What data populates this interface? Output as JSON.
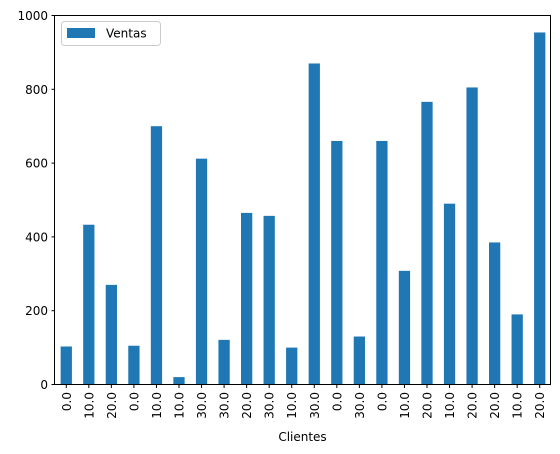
{
  "chart_data": {
    "type": "bar",
    "categories": [
      "0.0",
      "10.0",
      "20.0",
      "0.0",
      "10.0",
      "10.0",
      "30.0",
      "30.0",
      "20.0",
      "30.0",
      "10.0",
      "30.0",
      "0.0",
      "30.0",
      "0.0",
      "10.0",
      "20.0",
      "10.0",
      "20.0",
      "20.0",
      "10.0",
      "20.0"
    ],
    "series": [
      {
        "name": "Ventas",
        "color": "#1f77b4",
        "values": [
          103,
          433,
          270,
          105,
          700,
          20,
          612,
          121,
          465,
          457,
          100,
          870,
          660,
          130,
          660,
          308,
          766,
          490,
          805,
          385,
          190,
          954
        ]
      }
    ],
    "xlabel": "Clientes",
    "ylabel": "",
    "ylim": [
      0,
      1000
    ],
    "yticks": [
      0,
      200,
      400,
      600,
      800,
      1000
    ],
    "grid": false,
    "legend": "top-left"
  }
}
